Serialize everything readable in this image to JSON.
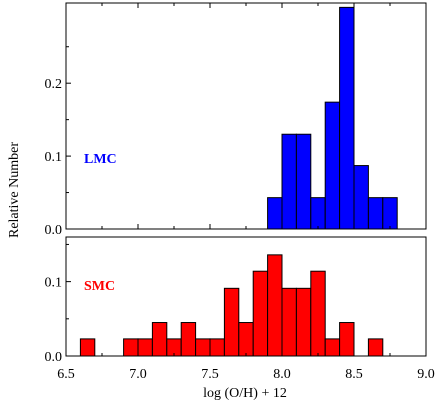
{
  "chart_data": {
    "type": "bar",
    "xlabel": "log (O/H) + 12",
    "ylabel": "Relative Number",
    "xlim": [
      6.5,
      9.0
    ],
    "xticks": [
      "6.5",
      "7.0",
      "7.5",
      "8.0",
      "8.5",
      "9.0"
    ],
    "bin_width": 0.1,
    "panels": [
      {
        "label": "LMC",
        "color": "#0000ff",
        "ylim": [
          0,
          0.31
        ],
        "yticks": [
          "0.0",
          "0.1",
          "0.2"
        ],
        "bins": [
          7.95,
          8.05,
          8.15,
          8.25,
          8.35,
          8.45,
          8.55,
          8.65,
          8.75
        ],
        "values": [
          0.043,
          0.13,
          0.13,
          0.043,
          0.174,
          0.304,
          0.087,
          0.043,
          0.043
        ]
      },
      {
        "label": "SMC",
        "color": "#ff0000",
        "ylim": [
          0,
          0.16
        ],
        "yticks": [
          "0.0",
          "0.1"
        ],
        "bins": [
          6.65,
          6.95,
          7.05,
          7.15,
          7.25,
          7.35,
          7.45,
          7.55,
          7.65,
          7.75,
          7.85,
          7.95,
          8.05,
          8.15,
          8.25,
          8.35,
          8.45,
          8.55,
          8.65
        ],
        "values": [
          0.023,
          0.023,
          0.023,
          0.045,
          0.023,
          0.045,
          0.023,
          0.023,
          0.091,
          0.045,
          0.114,
          0.136,
          0.091,
          0.091,
          0.114,
          0.023,
          0.045,
          0.0,
          0.023
        ]
      }
    ]
  }
}
